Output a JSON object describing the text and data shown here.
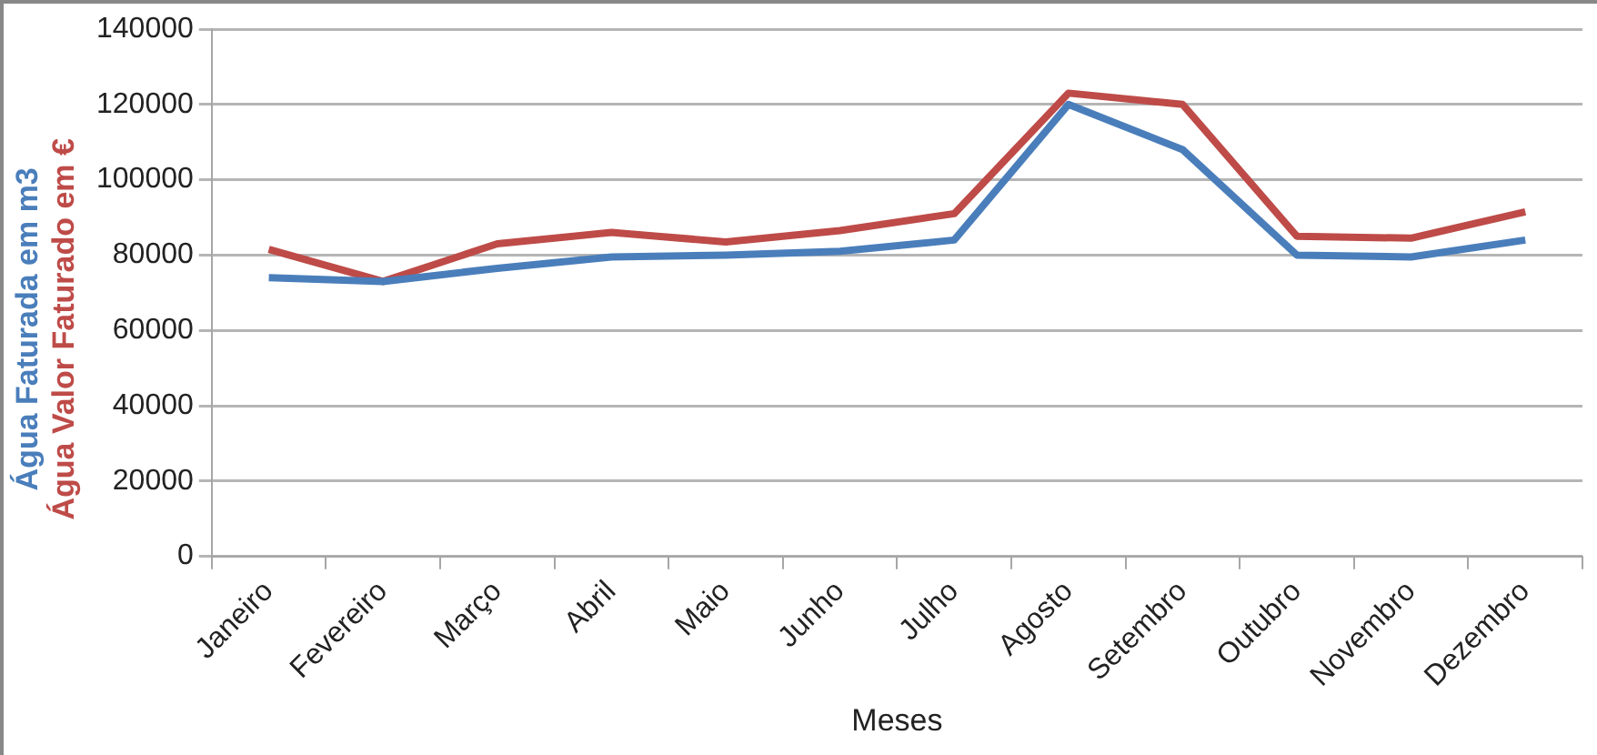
{
  "chart_data": {
    "type": "line",
    "xlabel": "Meses",
    "categories": [
      "Janeiro",
      "Fevereiro",
      "Março",
      "Abril",
      "Maio",
      "Junho",
      "Julho",
      "Agosto",
      "Setembro",
      "Outubro",
      "Novembro",
      "Dezembro"
    ],
    "series": [
      {
        "name": "Água Faturada em m3",
        "color": "#4a7ebb",
        "values": [
          74000,
          73000,
          76500,
          79500,
          80000,
          81000,
          84000,
          120000,
          108000,
          80000,
          79500,
          84000
        ]
      },
      {
        "name": "Água Valor Faturado em €",
        "color": "#be4b48",
        "values": [
          81500,
          73000,
          83000,
          86000,
          83500,
          86500,
          91000,
          123000,
          120000,
          85000,
          84500,
          91500
        ]
      }
    ],
    "ylim": [
      0,
      140000
    ],
    "yticks": [
      0,
      20000,
      40000,
      60000,
      80000,
      100000,
      120000,
      140000
    ],
    "grid": "y",
    "legend": false,
    "marker": "none",
    "line_style": "solid"
  }
}
